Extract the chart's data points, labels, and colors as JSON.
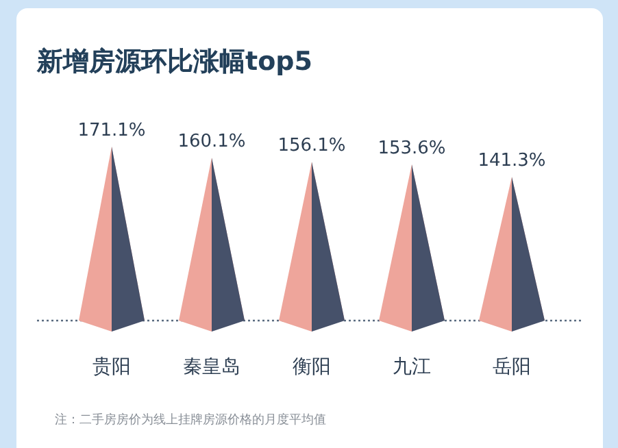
{
  "chart_data": {
    "type": "bar",
    "title": "新增房源环比涨幅top5",
    "categories": [
      "贵阳",
      "秦皇岛",
      "衡阳",
      "九江",
      "岳阳"
    ],
    "series": [
      {
        "color": "#eea59b",
        "values": [
          171.1,
          160.1,
          156.1,
          153.6,
          141.3
        ],
        "value_labels": [
          "171.1%",
          "160.1%",
          "156.1%",
          "153.6%",
          "141.3%"
        ]
      }
    ],
    "annotations": [
      "注：二手房房价为线上挂牌房源价格的月度平均值"
    ]
  }
}
